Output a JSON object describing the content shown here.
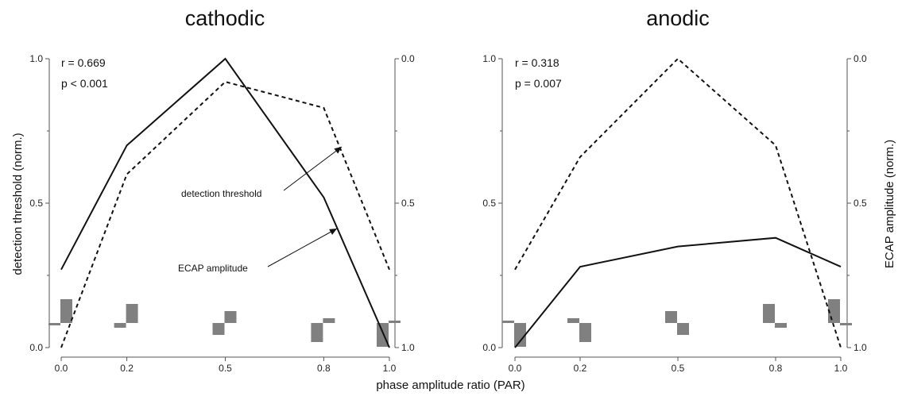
{
  "chart_data": [
    {
      "type": "line",
      "title": "cathodic",
      "x": [
        0.0,
        0.2,
        0.5,
        0.8,
        1.0
      ],
      "x_ticks": [
        "0.0",
        "0.2",
        "0.5",
        "0.8",
        "1.0"
      ],
      "left_ticks": [
        "0.0",
        "0.5",
        "1.0"
      ],
      "right_ticks": [
        "0.0",
        "0.5",
        "1.0"
      ],
      "ylim_left": [
        0,
        1
      ],
      "ylim_right": [
        1,
        0
      ],
      "series": [
        {
          "name": "ECAP amplitude",
          "style": "solid",
          "axis": "left",
          "values": [
            0.27,
            0.7,
            1.0,
            0.52,
            0.0
          ]
        },
        {
          "name": "detection threshold",
          "style": "dashed",
          "axis": "right",
          "values": [
            1.0,
            0.4,
            0.08,
            0.17,
            0.73
          ]
        }
      ],
      "stats": {
        "r": "r = 0.669",
        "p": "p < 0.001"
      },
      "annotations": {
        "threshold": "detection threshold",
        "ecap": "ECAP amplitude"
      },
      "waveforms": [
        {
          "x": 0.0,
          "a": 0.0
        },
        {
          "x": 0.2,
          "a": 0.2
        },
        {
          "x": 0.5,
          "a": 0.5
        },
        {
          "x": 0.8,
          "a": 0.8
        },
        {
          "x": 1.0,
          "a": 1.0
        }
      ]
    },
    {
      "type": "line",
      "title": "anodic",
      "x": [
        0.0,
        0.2,
        0.5,
        0.8,
        1.0
      ],
      "x_ticks": [
        "0.0",
        "0.2",
        "0.5",
        "0.8",
        "1.0"
      ],
      "left_ticks": [
        "0.0",
        "0.5",
        "1.0"
      ],
      "right_ticks": [
        "0.0",
        "0.5",
        "1.0"
      ],
      "ylim_left": [
        0,
        1
      ],
      "ylim_right": [
        1,
        0
      ],
      "series": [
        {
          "name": "ECAP amplitude",
          "style": "solid",
          "axis": "left",
          "values": [
            0.0,
            0.28,
            0.35,
            0.38,
            0.28
          ]
        },
        {
          "name": "detection threshold",
          "style": "dashed",
          "axis": "right",
          "values": [
            0.73,
            0.34,
            0.0,
            0.3,
            1.0
          ]
        }
      ],
      "stats": {
        "r": "r = 0.318",
        "p": "p = 0.007"
      },
      "waveforms": [
        {
          "x": 0.0,
          "a": 1.0
        },
        {
          "x": 0.2,
          "a": 0.8
        },
        {
          "x": 0.5,
          "a": 0.5
        },
        {
          "x": 0.8,
          "a": 0.2
        },
        {
          "x": 1.0,
          "a": 0.0
        }
      ]
    }
  ],
  "labels": {
    "ylabel_left": "detection threshold (norm.)",
    "ylabel_right": "ECAP amplitude (norm.)",
    "xlabel": "phase amplitude ratio (PAR)"
  },
  "colors": {
    "line": "#111111",
    "axis": "#555555",
    "waveform": "#808080"
  }
}
